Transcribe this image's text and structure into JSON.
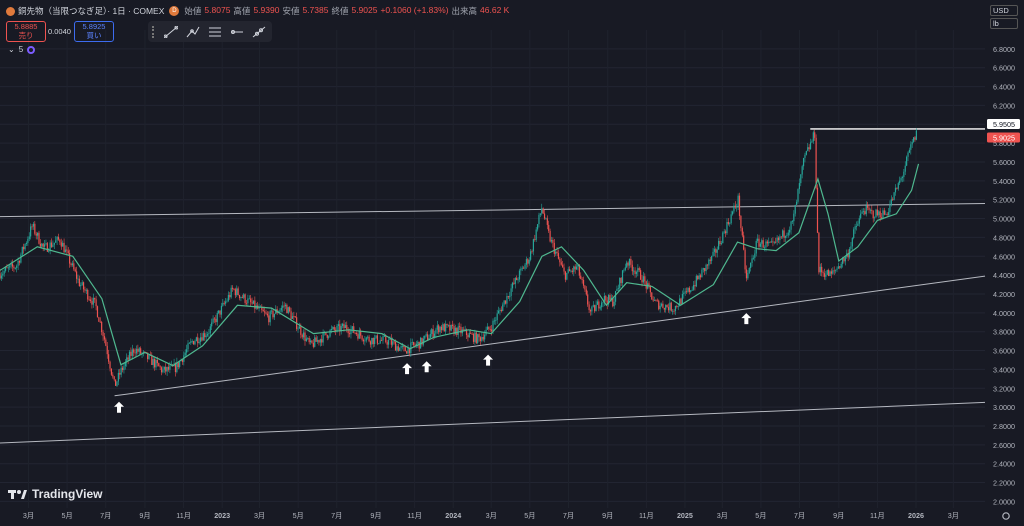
{
  "header": {
    "title": "銅先物（当限つなぎ足）· 1日 · COMEX",
    "interval_badge": "D",
    "open_label": "始値",
    "open_value": "5.8075",
    "high_label": "高値",
    "high_value": "5.9390",
    "low_label": "安値",
    "low_value": "5.7385",
    "close_label": "終値",
    "close_value": "5.9025",
    "change": "+0.1060 (+1.83%)",
    "volume_label": "出来高",
    "volume_value": "46.62 K"
  },
  "trade": {
    "sell_price": "5.8885",
    "sell_label": "売り",
    "spread": "0.0040",
    "buy_price": "5.8925",
    "buy_label": "買い"
  },
  "indicator": {
    "label": "5"
  },
  "toolbar": {
    "tools": [
      "trend-line-icon",
      "multi-line-icon",
      "parallel-channel-icon",
      "horizontal-ray-icon",
      "extended-line-icon"
    ]
  },
  "axis": {
    "currency": "USD",
    "unit": "lb"
  },
  "brand": {
    "name": "TradingView"
  },
  "colors": {
    "background": "#181a24",
    "candle_up": "#26a69a",
    "candle_down": "#ef5350",
    "ma": "#4fb88f",
    "trendline": "#d1d4dc",
    "resistance": "#ffffff",
    "price_tag": "#ef5350"
  },
  "chart_data": {
    "type": "candlestick",
    "y_ticks": [
      "2.0000",
      "2.2000",
      "2.4000",
      "2.6000",
      "2.8000",
      "3.0000",
      "3.2000",
      "3.4000",
      "3.6000",
      "3.8000",
      "4.0000",
      "4.2000",
      "4.4000",
      "4.6000",
      "4.8000",
      "5.0000",
      "5.2000",
      "5.4000",
      "5.6000",
      "5.8000",
      "6.0000",
      "6.2000",
      "6.4000",
      "6.6000",
      "6.8000"
    ],
    "ylim": [
      1.93,
      7.0
    ],
    "x_ticks": [
      {
        "date": "2022-03-01",
        "label": "3月",
        "bold": false
      },
      {
        "date": "2022-05-01",
        "label": "5月",
        "bold": false
      },
      {
        "date": "2022-07-01",
        "label": "7月",
        "bold": false
      },
      {
        "date": "2022-09-01",
        "label": "9月",
        "bold": false
      },
      {
        "date": "2022-11-01",
        "label": "11月",
        "bold": false
      },
      {
        "date": "2023-01-01",
        "label": "2023",
        "bold": true
      },
      {
        "date": "2023-03-01",
        "label": "3月",
        "bold": false
      },
      {
        "date": "2023-05-01",
        "label": "5月",
        "bold": false
      },
      {
        "date": "2023-07-01",
        "label": "7月",
        "bold": false
      },
      {
        "date": "2023-09-01",
        "label": "9月",
        "bold": false
      },
      {
        "date": "2023-11-01",
        "label": "11月",
        "bold": false
      },
      {
        "date": "2024-01-01",
        "label": "2024",
        "bold": true
      },
      {
        "date": "2024-03-01",
        "label": "3月",
        "bold": false
      },
      {
        "date": "2024-05-01",
        "label": "5月",
        "bold": false
      },
      {
        "date": "2024-07-01",
        "label": "7月",
        "bold": false
      },
      {
        "date": "2024-09-01",
        "label": "9月",
        "bold": false
      },
      {
        "date": "2024-11-01",
        "label": "11月",
        "bold": false
      },
      {
        "date": "2025-01-01",
        "label": "2025",
        "bold": true
      },
      {
        "date": "2025-03-01",
        "label": "3月",
        "bold": false
      },
      {
        "date": "2025-05-01",
        "label": "5月",
        "bold": false
      },
      {
        "date": "2025-07-01",
        "label": "7月",
        "bold": false
      },
      {
        "date": "2025-09-01",
        "label": "9月",
        "bold": false
      },
      {
        "date": "2025-11-01",
        "label": "11月",
        "bold": false
      },
      {
        "date": "2026-01-01",
        "label": "2026",
        "bold": true
      },
      {
        "date": "2026-03-01",
        "label": "3月",
        "bold": false
      }
    ],
    "xlim": [
      "2022-01-15",
      "2026-04-20"
    ],
    "price_path": [
      [
        "2022-01-15",
        4.42
      ],
      [
        "2022-02-10",
        4.5
      ],
      [
        "2022-03-07",
        4.92
      ],
      [
        "2022-03-25",
        4.68
      ],
      [
        "2022-04-20",
        4.78
      ],
      [
        "2022-05-20",
        4.32
      ],
      [
        "2022-06-15",
        4.08
      ],
      [
        "2022-06-30",
        3.7
      ],
      [
        "2022-07-15",
        3.22
      ],
      [
        "2022-07-25",
        3.38
      ],
      [
        "2022-08-15",
        3.62
      ],
      [
        "2022-09-10",
        3.5
      ],
      [
        "2022-09-30",
        3.38
      ],
      [
        "2022-10-20",
        3.42
      ],
      [
        "2022-11-15",
        3.7
      ],
      [
        "2022-12-10",
        3.8
      ],
      [
        "2023-01-18",
        4.25
      ],
      [
        "2023-02-15",
        4.1
      ],
      [
        "2023-03-15",
        3.95
      ],
      [
        "2023-04-10",
        4.08
      ],
      [
        "2023-05-20",
        3.65
      ],
      [
        "2023-06-20",
        3.8
      ],
      [
        "2023-07-15",
        3.85
      ],
      [
        "2023-08-20",
        3.72
      ],
      [
        "2023-09-20",
        3.7
      ],
      [
        "2023-10-15",
        3.6
      ],
      [
        "2023-11-10",
        3.68
      ],
      [
        "2023-12-10",
        3.85
      ],
      [
        "2024-01-15",
        3.8
      ],
      [
        "2024-02-10",
        3.72
      ],
      [
        "2024-03-01",
        3.85
      ],
      [
        "2024-04-01",
        4.25
      ],
      [
        "2024-05-01",
        4.6
      ],
      [
        "2024-05-20",
        5.12
      ],
      [
        "2024-06-01",
        4.8
      ],
      [
        "2024-06-25",
        4.4
      ],
      [
        "2024-07-15",
        4.48
      ],
      [
        "2024-08-05",
        4.0
      ],
      [
        "2024-08-25",
        4.15
      ],
      [
        "2024-09-10",
        4.12
      ],
      [
        "2024-10-01",
        4.55
      ],
      [
        "2024-10-25",
        4.38
      ],
      [
        "2024-11-15",
        4.1
      ],
      [
        "2024-12-15",
        4.05
      ],
      [
        "2025-01-15",
        4.3
      ],
      [
        "2025-02-15",
        4.6
      ],
      [
        "2025-03-26",
        5.2
      ],
      [
        "2025-04-08",
        4.35
      ],
      [
        "2025-04-25",
        4.75
      ],
      [
        "2025-05-20",
        4.7
      ],
      [
        "2025-06-20",
        4.95
      ],
      [
        "2025-07-08",
        5.62
      ],
      [
        "2025-07-25",
        5.9
      ],
      [
        "2025-07-31",
        4.45
      ],
      [
        "2025-08-20",
        4.4
      ],
      [
        "2025-09-15",
        4.62
      ],
      [
        "2025-09-25",
        4.85
      ],
      [
        "2025-10-10",
        5.1
      ],
      [
        "2025-10-25",
        5.05
      ],
      [
        "2025-11-15",
        5.05
      ],
      [
        "2025-12-10",
        5.45
      ],
      [
        "2025-12-25",
        5.78
      ],
      [
        "2026-01-02",
        5.9
      ]
    ],
    "ma_path": [
      [
        "2022-01-15",
        4.45
      ],
      [
        "2022-03-15",
        4.7
      ],
      [
        "2022-05-10",
        4.6
      ],
      [
        "2022-06-25",
        4.15
      ],
      [
        "2022-07-25",
        3.45
      ],
      [
        "2022-09-01",
        3.58
      ],
      [
        "2022-10-15",
        3.44
      ],
      [
        "2022-12-01",
        3.65
      ],
      [
        "2023-01-25",
        4.08
      ],
      [
        "2023-03-20",
        4.05
      ],
      [
        "2023-05-25",
        3.78
      ],
      [
        "2023-07-20",
        3.82
      ],
      [
        "2023-09-10",
        3.78
      ],
      [
        "2023-10-25",
        3.62
      ],
      [
        "2023-12-01",
        3.74
      ],
      [
        "2024-01-25",
        3.82
      ],
      [
        "2024-03-01",
        3.78
      ],
      [
        "2024-04-15",
        4.12
      ],
      [
        "2024-05-20",
        4.6
      ],
      [
        "2024-06-20",
        4.7
      ],
      [
        "2024-07-25",
        4.45
      ],
      [
        "2024-08-30",
        4.08
      ],
      [
        "2024-10-01",
        4.32
      ],
      [
        "2024-11-10",
        4.28
      ],
      [
        "2024-12-25",
        4.08
      ],
      [
        "2025-02-15",
        4.3
      ],
      [
        "2025-03-25",
        4.75
      ],
      [
        "2025-04-25",
        4.68
      ],
      [
        "2025-05-25",
        4.66
      ],
      [
        "2025-06-30",
        4.85
      ],
      [
        "2025-07-30",
        5.42
      ],
      [
        "2025-08-15",
        5.05
      ],
      [
        "2025-09-01",
        4.55
      ],
      [
        "2025-10-01",
        4.7
      ],
      [
        "2025-11-01",
        4.98
      ],
      [
        "2025-12-01",
        5.05
      ],
      [
        "2025-12-25",
        5.3
      ],
      [
        "2026-01-05",
        5.58
      ]
    ],
    "trendlines": [
      {
        "name": "upper-channel-line",
        "x1": "2022-01-15",
        "y1": 5.02,
        "x2": "2026-04-20",
        "y2": 5.16
      },
      {
        "name": "support-trendline",
        "x1": "2022-07-15",
        "y1": 3.12,
        "x2": "2026-04-20",
        "y2": 4.39
      },
      {
        "name": "lower-trendline",
        "x1": "2022-01-15",
        "y1": 2.62,
        "x2": "2026-04-20",
        "y2": 3.05
      }
    ],
    "resistance": {
      "level": 5.9505,
      "from": "2025-07-18",
      "to": "2026-04-20"
    },
    "arrows": [
      {
        "date": "2022-07-22",
        "value": 3.12
      },
      {
        "date": "2023-10-20",
        "value": 3.53
      },
      {
        "date": "2023-11-20",
        "value": 3.55
      },
      {
        "date": "2024-02-25",
        "value": 3.62
      },
      {
        "date": "2025-04-08",
        "value": 4.06
      }
    ],
    "price_labels": [
      {
        "value": "5.9505",
        "kind": "line"
      },
      {
        "value": "5.9025",
        "kind": "last"
      }
    ]
  }
}
